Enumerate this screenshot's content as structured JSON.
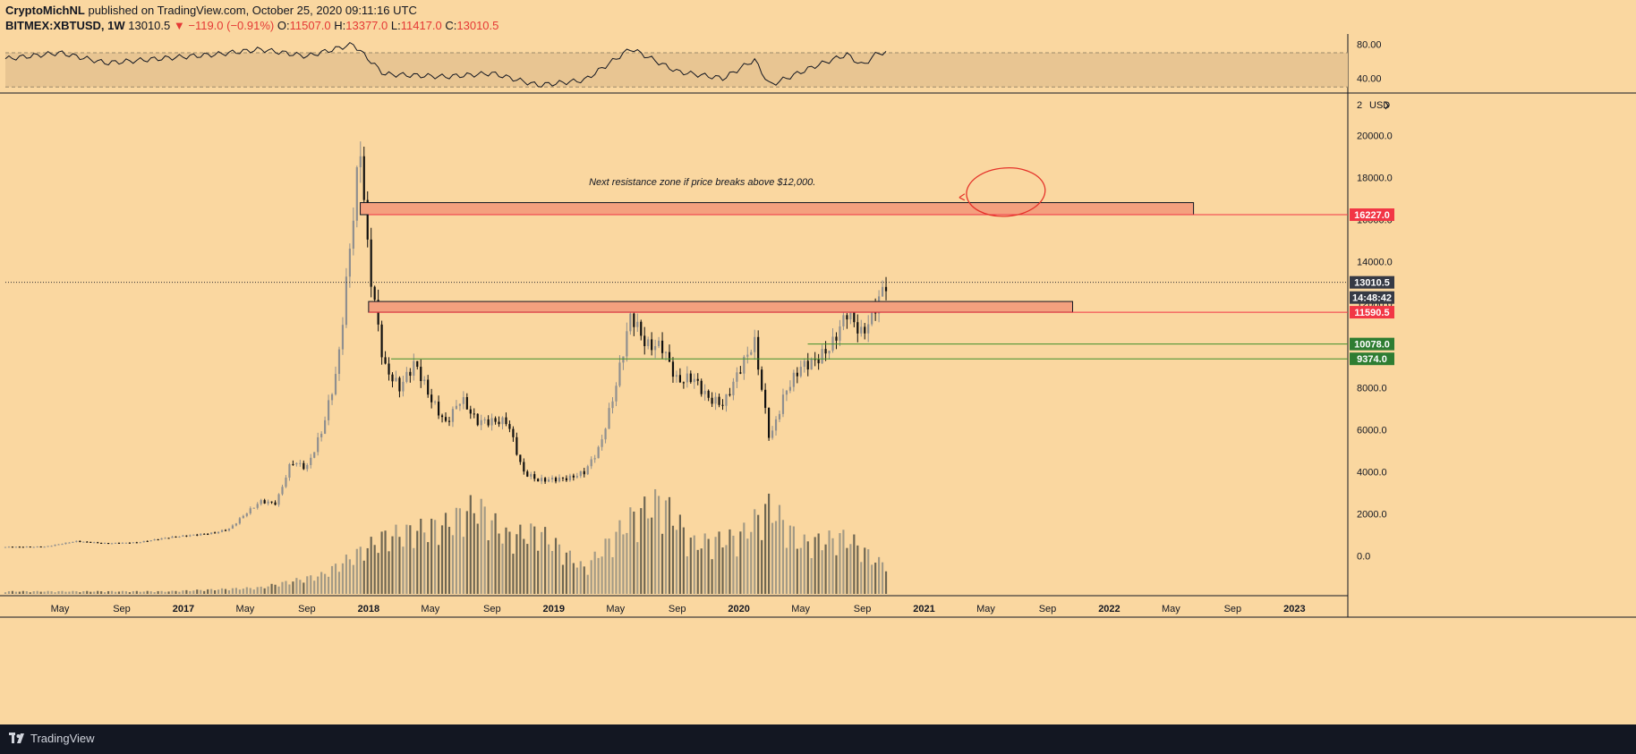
{
  "header": {
    "author": "CryptoMichNL",
    "published_text": "published on TradingView.com, October 25, 2020 09:11:16 UTC",
    "symbol": "BITMEX:XBTUSD, 1W",
    "last": "13010.5",
    "change": "▼ −119.0 (−0.91%)",
    "open_label": "O:",
    "open": "11507.0",
    "high_label": "H:",
    "high": "13377.0",
    "low_label": "L:",
    "low": "11417.0",
    "close_label": "C:",
    "close": "13010.5"
  },
  "footer": {
    "brand": "TradingView"
  },
  "colors": {
    "background": "#fad7a0",
    "zone_fill": "#f4a07e",
    "zone_line": "#f23645",
    "support_line": "#3f8f2a",
    "support_tag": "#2e7d32",
    "resistance_tag": "#f23645",
    "price_tag": "#363a45",
    "rsi_band": "#e8c592"
  },
  "chart_data": {
    "type": "candlestick",
    "symbol": "BITMEX:XBTUSD",
    "interval": "1W",
    "currency_label": "USD",
    "ylim": [
      -1800,
      21500
    ],
    "y_ticks": [
      "20000.0",
      "18000.0",
      "16000.0",
      "14000.0",
      "12000.0",
      "10000.0",
      "8000.0",
      "6000.0",
      "4000.0",
      "2000.0",
      "0.0"
    ],
    "time_labels": [
      {
        "t": "2016-05",
        "label": "May"
      },
      {
        "t": "2016-09",
        "label": "Sep"
      },
      {
        "t": "2017-01",
        "label": "2017"
      },
      {
        "t": "2017-05",
        "label": "May"
      },
      {
        "t": "2017-09",
        "label": "Sep"
      },
      {
        "t": "2018-01",
        "label": "2018"
      },
      {
        "t": "2018-05",
        "label": "May"
      },
      {
        "t": "2018-09",
        "label": "Sep"
      },
      {
        "t": "2019-01",
        "label": "2019"
      },
      {
        "t": "2019-05",
        "label": "May"
      },
      {
        "t": "2019-09",
        "label": "Sep"
      },
      {
        "t": "2020-01",
        "label": "2020"
      },
      {
        "t": "2020-05",
        "label": "May"
      },
      {
        "t": "2020-09",
        "label": "Sep"
      },
      {
        "t": "2021-01",
        "label": "2021"
      },
      {
        "t": "2021-05",
        "label": "May"
      },
      {
        "t": "2021-09",
        "label": "Sep"
      },
      {
        "t": "2022-01",
        "label": "2022"
      },
      {
        "t": "2022-05",
        "label": "May"
      },
      {
        "t": "2022-09",
        "label": "Sep"
      },
      {
        "t": "2023-01",
        "label": "2023"
      }
    ],
    "price_path": [
      [
        "2016-01",
        430
      ],
      [
        "2016-04",
        440
      ],
      [
        "2016-06",
        700
      ],
      [
        "2016-08",
        600
      ],
      [
        "2016-10",
        640
      ],
      [
        "2016-12",
        880
      ],
      [
        "2017-01",
        950
      ],
      [
        "2017-03",
        1100
      ],
      [
        "2017-04",
        1300
      ],
      [
        "2017-05",
        2000
      ],
      [
        "2017-06",
        2600
      ],
      [
        "2017-07",
        2500
      ],
      [
        "2017-08",
        4500
      ],
      [
        "2017-09",
        4200
      ],
      [
        "2017-10",
        6000
      ],
      [
        "2017-11",
        9000
      ],
      [
        "2017-12-15",
        19500
      ],
      [
        "2018-01",
        14000
      ],
      [
        "2018-02",
        9000
      ],
      [
        "2018-03",
        8000
      ],
      [
        "2018-04",
        9200
      ],
      [
        "2018-05",
        7500
      ],
      [
        "2018-06",
        6300
      ],
      [
        "2018-07",
        7500
      ],
      [
        "2018-08",
        6400
      ],
      [
        "2018-10",
        6400
      ],
      [
        "2018-11",
        4000
      ],
      [
        "2018-12",
        3600
      ],
      [
        "2019-02",
        3700
      ],
      [
        "2019-03",
        4000
      ],
      [
        "2019-04",
        5200
      ],
      [
        "2019-05",
        8000
      ],
      [
        "2019-06",
        11500
      ],
      [
        "2019-07",
        10000
      ],
      [
        "2019-08",
        10000
      ],
      [
        "2019-09",
        8300
      ],
      [
        "2019-10",
        8500
      ],
      [
        "2019-11",
        7500
      ],
      [
        "2019-12",
        7200
      ],
      [
        "2020-01",
        8800
      ],
      [
        "2020-02",
        10200
      ],
      [
        "2020-03",
        5500
      ],
      [
        "2020-04",
        7800
      ],
      [
        "2020-05",
        9000
      ],
      [
        "2020-06",
        9300
      ],
      [
        "2020-07",
        10000
      ],
      [
        "2020-08",
        11600
      ],
      [
        "2020-09",
        10500
      ],
      [
        "2020-10-18",
        13010.5
      ]
    ],
    "volume_path": [
      [
        "2016-01",
        0.02
      ],
      [
        "2016-12",
        0.02
      ],
      [
        "2017-06",
        0.05
      ],
      [
        "2017-10",
        0.15
      ],
      [
        "2017-12",
        0.3
      ],
      [
        "2018-02",
        0.45
      ],
      [
        "2018-06",
        0.55
      ],
      [
        "2018-08",
        0.7
      ],
      [
        "2018-10",
        0.45
      ],
      [
        "2018-12",
        0.5
      ],
      [
        "2019-03",
        0.2
      ],
      [
        "2019-06",
        0.6
      ],
      [
        "2019-08",
        0.75
      ],
      [
        "2019-10",
        0.4
      ],
      [
        "2020-01",
        0.45
      ],
      [
        "2020-03",
        0.7
      ],
      [
        "2020-05",
        0.4
      ],
      [
        "2020-08",
        0.45
      ],
      [
        "2020-10",
        0.25
      ]
    ],
    "rsi_path": [
      [
        "2016-01",
        62
      ],
      [
        "2016-05",
        70
      ],
      [
        "2016-08",
        58
      ],
      [
        "2016-12",
        64
      ],
      [
        "2017-03",
        68
      ],
      [
        "2017-06",
        74
      ],
      [
        "2017-09",
        66
      ],
      [
        "2017-12",
        80
      ],
      [
        "2018-02",
        45
      ],
      [
        "2018-06",
        42
      ],
      [
        "2018-09",
        46
      ],
      [
        "2018-12",
        32
      ],
      [
        "2019-03",
        38
      ],
      [
        "2019-06",
        75
      ],
      [
        "2019-09",
        48
      ],
      [
        "2019-12",
        40
      ],
      [
        "2020-02",
        62
      ],
      [
        "2020-03",
        32
      ],
      [
        "2020-06",
        55
      ],
      [
        "2020-08",
        68
      ],
      [
        "2020-09",
        55
      ],
      [
        "2020-10",
        70
      ]
    ],
    "rsi": {
      "ylim": [
        25,
        92
      ],
      "band": [
        30,
        70
      ],
      "ticks": [
        "80.00",
        "40.00"
      ]
    },
    "zones": [
      {
        "from": "2017-12-15",
        "to": "2022-06-15",
        "low": 16227.0,
        "high": 16800
      },
      {
        "from": "2018-01-01",
        "to": "2021-10-20",
        "low": 11590.5,
        "high": 12100
      }
    ],
    "levels": [
      {
        "from": "2018-01-01",
        "price": 16227.0,
        "label": "16227.0",
        "color": "#f23645"
      },
      {
        "from": "2018-01-01",
        "price": 11590.5,
        "label": "11590.5",
        "color": "#f23645"
      },
      {
        "from": "2020-05-15",
        "price": 10078.0,
        "label": "10078.0",
        "color": "#3f8f2a"
      },
      {
        "from": "2018-02-15",
        "price": 9374.0,
        "label": "9374.0",
        "color": "#3f8f2a"
      }
    ],
    "last_price": {
      "price": 13010.5,
      "label": "13010.5",
      "countdown": "14:48:42"
    },
    "annotation": {
      "text": "Next resistance zone if price breaks above $12,000.",
      "t": "2019-10-20",
      "price": 17800
    },
    "circle": {
      "t": "2021-06-10",
      "price": 17300
    }
  }
}
